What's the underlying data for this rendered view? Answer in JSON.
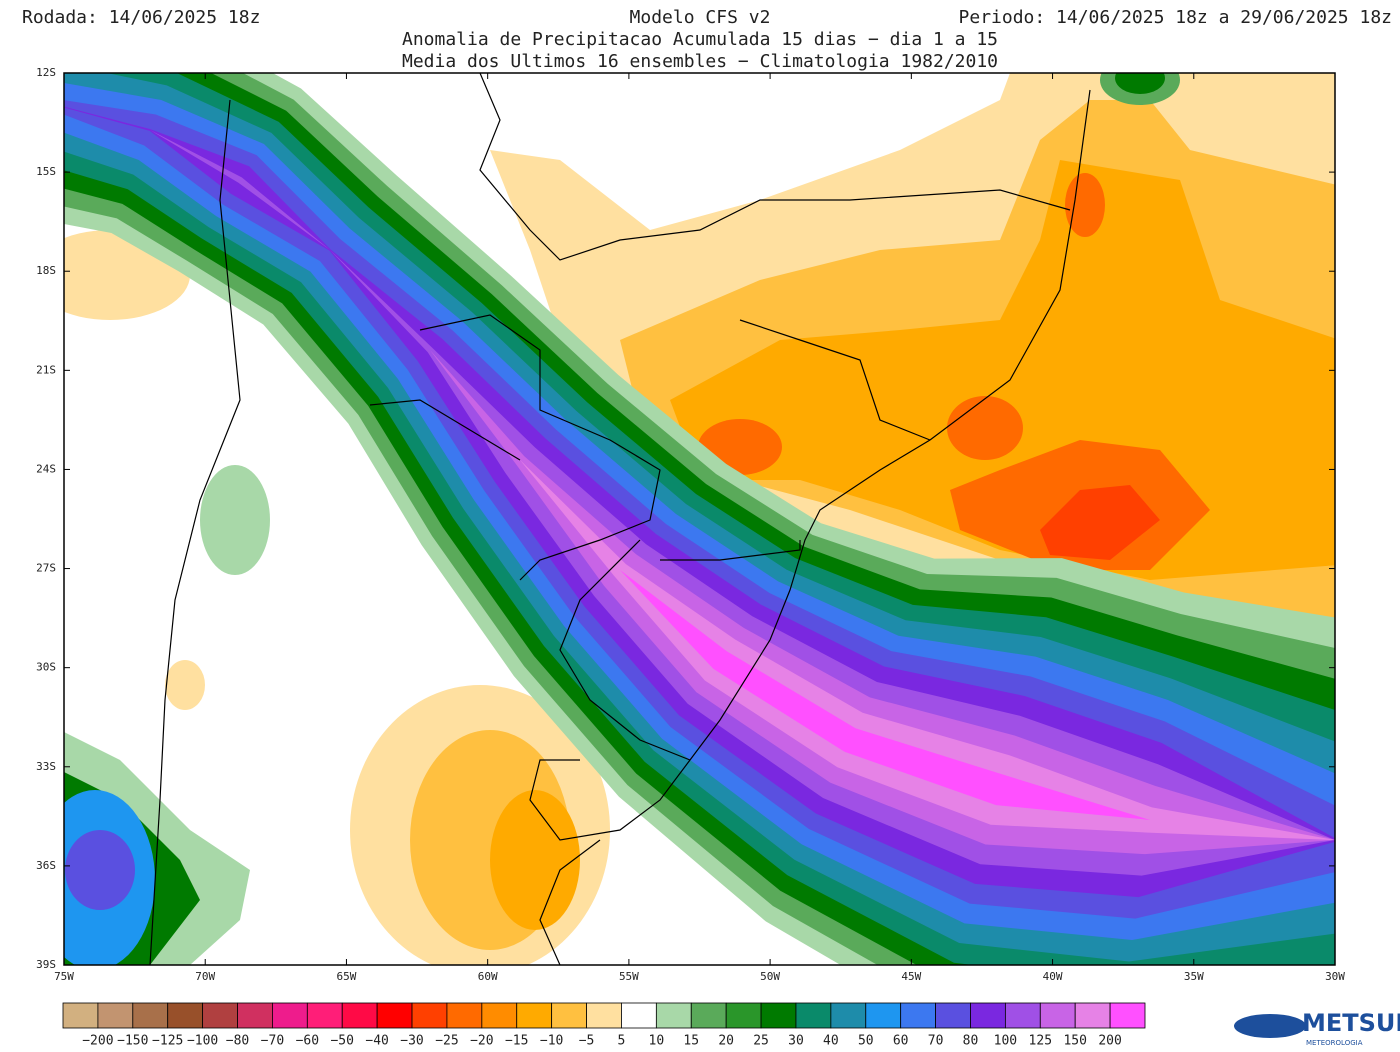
{
  "header": {
    "left": "Rodada: 14/06/2025 18z",
    "center": "Modelo CFS v2",
    "right": "Periodo: 14/06/2025 18z a 29/06/2025 18z",
    "subtitle_1": "Anomalia de Precipitacao Acumulada 15 dias − dia 1 a 15",
    "subtitle_2": "Media dos Ultimos 16 ensembles − Climatologia 1982/2010"
  },
  "map": {
    "lat_labels": [
      "12S",
      "15S",
      "18S",
      "21S",
      "24S",
      "27S",
      "30S",
      "33S",
      "36S",
      "39S"
    ],
    "lon_labels": [
      "75W",
      "70W",
      "65W",
      "60W",
      "55W",
      "50W",
      "45W",
      "40W",
      "35W",
      "30W"
    ]
  },
  "legend": {
    "labels": [
      "−200",
      "−150",
      "−125",
      "−100",
      "−80",
      "−70",
      "−60",
      "−50",
      "−40",
      "−30",
      "−25",
      "−20",
      "−15",
      "−10",
      "−5",
      "5",
      "10",
      "15",
      "20",
      "25",
      "30",
      "40",
      "50",
      "60",
      "70",
      "80",
      "100",
      "125",
      "150",
      "200"
    ],
    "colors": [
      "#d2b080",
      "#c29470",
      "#a8704a",
      "#98502a",
      "#b04040",
      "#d03060",
      "#ee1c8c",
      "#ff1e78",
      "#ff0a46",
      "#ff0000",
      "#ff4000",
      "#ff6a00",
      "#ff8c00",
      "#ffaa00",
      "#ffc040",
      "#ffe0a0",
      "#ffffff",
      "#a8d8a8",
      "#5aaa5a",
      "#2a962a",
      "#007a00",
      "#0a8a6a",
      "#1e8caa",
      "#1e96f0",
      "#3c78f0",
      "#5a50e0",
      "#7a28e0",
      "#a050e6",
      "#c864e6",
      "#e682e6",
      "#ff50ff"
    ]
  },
  "logo": {
    "name": "METSUL",
    "tagline": "METEOROLOGIA"
  }
}
